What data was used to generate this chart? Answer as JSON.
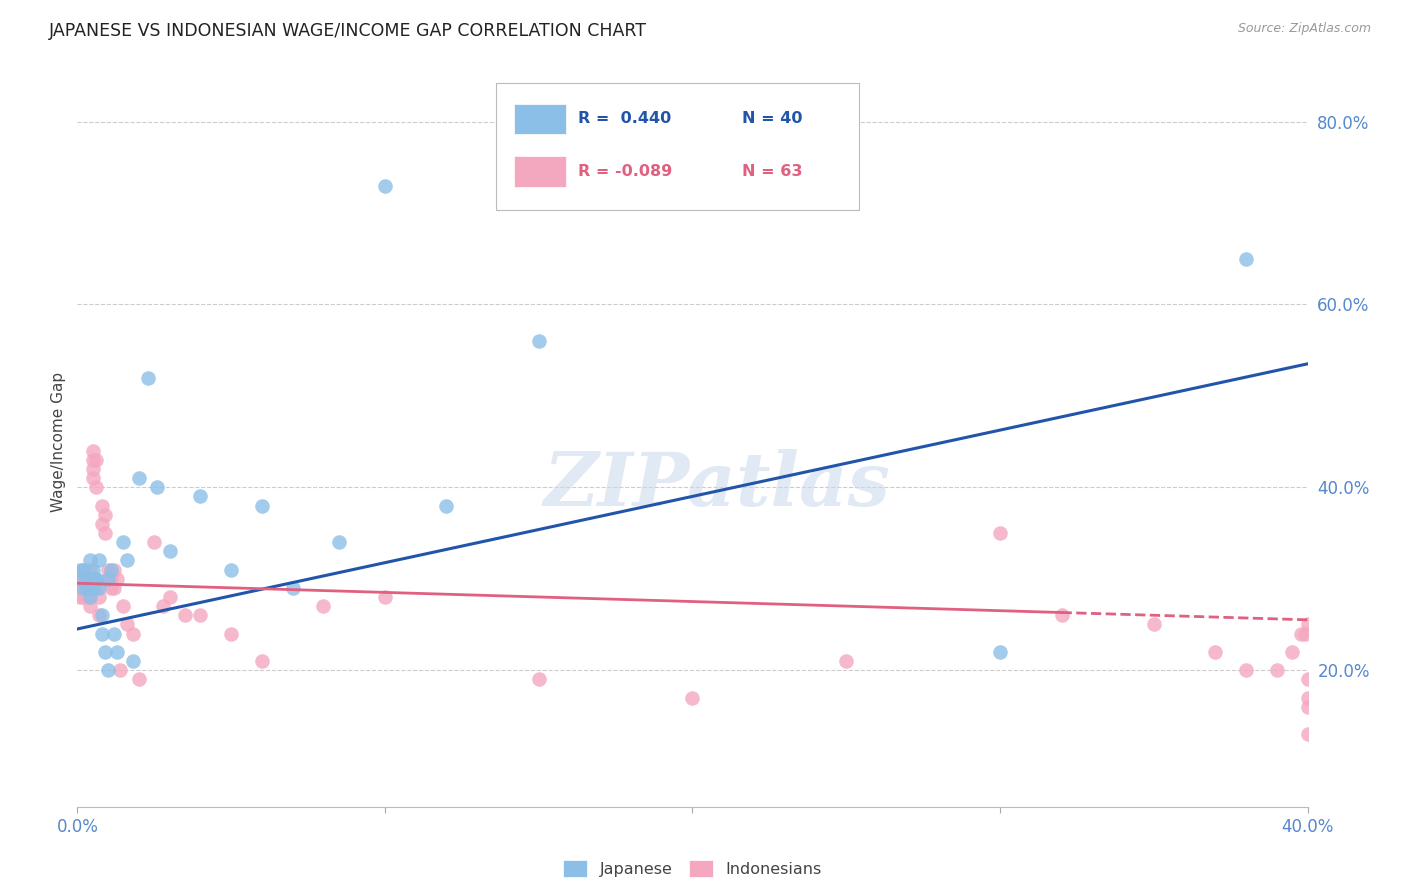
{
  "title": "JAPANESE VS INDONESIAN WAGE/INCOME GAP CORRELATION CHART",
  "source": "Source: ZipAtlas.com",
  "ylabel": "Wage/Income Gap",
  "watermark": "ZIPatlas",
  "legend_blue_r": "R =  0.440",
  "legend_blue_n": "N = 40",
  "legend_pink_r": "R = -0.089",
  "legend_pink_n": "N = 63",
  "blue_color": "#8bbfe8",
  "pink_color": "#f4a8c0",
  "blue_line_color": "#2255aa",
  "pink_line_color": "#e06080",
  "background_color": "#ffffff",
  "grid_color": "#cccccc",
  "tick_color": "#5588cc",
  "text_color": "#444444",
  "source_color": "#999999",
  "japanese_x": [
    0.001,
    0.001,
    0.002,
    0.002,
    0.003,
    0.003,
    0.004,
    0.004,
    0.005,
    0.005,
    0.005,
    0.006,
    0.006,
    0.007,
    0.007,
    0.008,
    0.008,
    0.009,
    0.01,
    0.01,
    0.011,
    0.012,
    0.013,
    0.015,
    0.016,
    0.018,
    0.02,
    0.023,
    0.026,
    0.03,
    0.04,
    0.05,
    0.06,
    0.07,
    0.085,
    0.1,
    0.12,
    0.15,
    0.3,
    0.38
  ],
  "japanese_y": [
    0.3,
    0.31,
    0.29,
    0.31,
    0.3,
    0.29,
    0.28,
    0.32,
    0.3,
    0.29,
    0.31,
    0.3,
    0.3,
    0.32,
    0.29,
    0.26,
    0.24,
    0.22,
    0.3,
    0.2,
    0.31,
    0.24,
    0.22,
    0.34,
    0.32,
    0.21,
    0.41,
    0.52,
    0.4,
    0.33,
    0.39,
    0.31,
    0.38,
    0.29,
    0.34,
    0.73,
    0.38,
    0.56,
    0.22,
    0.65
  ],
  "indonesian_x": [
    0.001,
    0.001,
    0.001,
    0.002,
    0.002,
    0.002,
    0.003,
    0.003,
    0.003,
    0.004,
    0.004,
    0.004,
    0.005,
    0.005,
    0.005,
    0.005,
    0.006,
    0.006,
    0.006,
    0.007,
    0.007,
    0.008,
    0.008,
    0.009,
    0.009,
    0.01,
    0.01,
    0.011,
    0.011,
    0.012,
    0.012,
    0.013,
    0.014,
    0.015,
    0.016,
    0.018,
    0.02,
    0.025,
    0.028,
    0.03,
    0.035,
    0.04,
    0.05,
    0.06,
    0.08,
    0.1,
    0.15,
    0.2,
    0.25,
    0.3,
    0.32,
    0.35,
    0.37,
    0.38,
    0.39,
    0.395,
    0.398,
    0.399,
    0.4,
    0.4,
    0.4,
    0.4,
    0.4
  ],
  "indonesian_y": [
    0.3,
    0.29,
    0.28,
    0.31,
    0.3,
    0.28,
    0.29,
    0.28,
    0.3,
    0.29,
    0.27,
    0.31,
    0.43,
    0.44,
    0.42,
    0.41,
    0.4,
    0.43,
    0.29,
    0.28,
    0.26,
    0.38,
    0.36,
    0.37,
    0.35,
    0.3,
    0.31,
    0.3,
    0.29,
    0.31,
    0.29,
    0.3,
    0.2,
    0.27,
    0.25,
    0.24,
    0.19,
    0.34,
    0.27,
    0.28,
    0.26,
    0.26,
    0.24,
    0.21,
    0.27,
    0.28,
    0.19,
    0.17,
    0.21,
    0.35,
    0.26,
    0.25,
    0.22,
    0.2,
    0.2,
    0.22,
    0.24,
    0.24,
    0.13,
    0.16,
    0.17,
    0.19,
    0.25
  ],
  "blue_line_x0": 0.0,
  "blue_line_y0": 0.245,
  "blue_line_x1": 0.4,
  "blue_line_y1": 0.535,
  "pink_line_x0": 0.0,
  "pink_line_y0": 0.295,
  "pink_line_solid_x1": 0.32,
  "pink_line_x1": 0.4,
  "pink_line_y1": 0.255,
  "xlim": [
    0.0,
    0.4
  ],
  "ylim": [
    0.05,
    0.85
  ],
  "xticks": [
    0.0,
    0.1,
    0.2,
    0.3,
    0.4
  ],
  "yticks_right": [
    0.2,
    0.4,
    0.6,
    0.8
  ],
  "ytick_labels_right": [
    "20.0%",
    "40.0%",
    "60.0%",
    "80.0%"
  ],
  "xtick_labels": [
    "0.0%",
    "",
    "",
    "",
    "40.0%"
  ]
}
